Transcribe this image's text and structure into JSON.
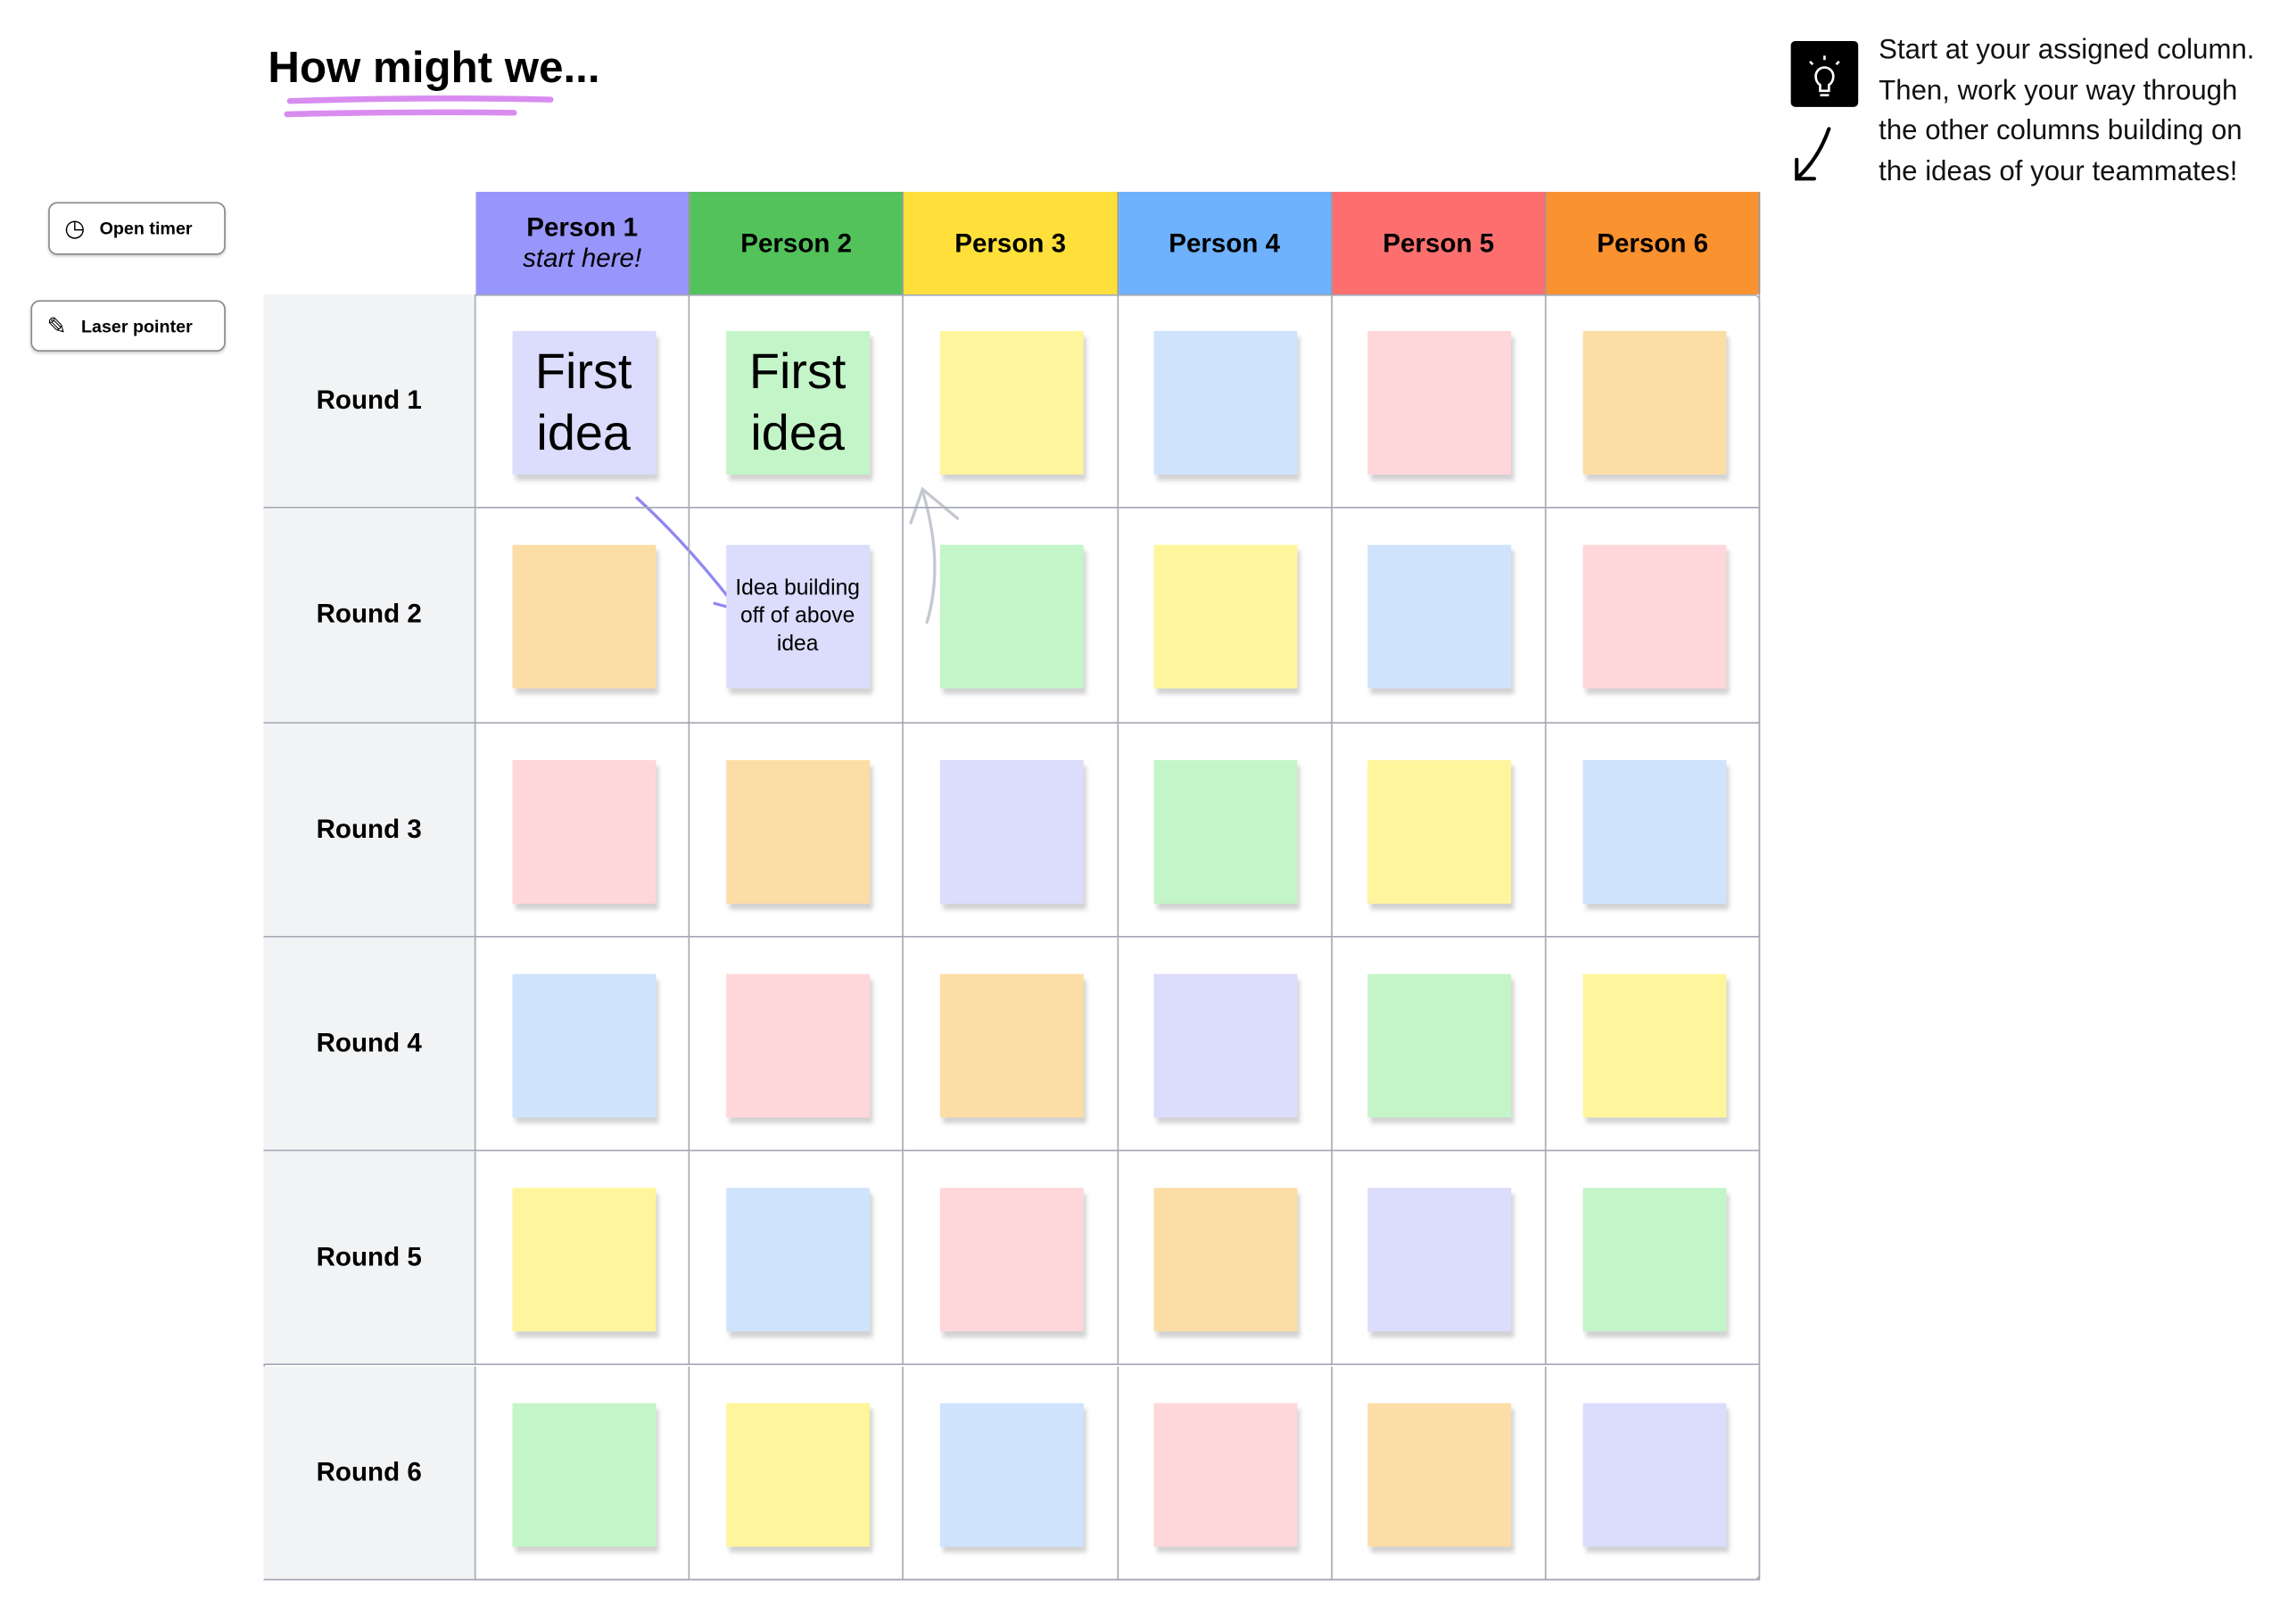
{
  "title": "How might we...",
  "toolbar": {
    "buttons": [
      "Open timer",
      "Laser pointer"
    ]
  },
  "instructions": [
    "Start at your assigned column.",
    "Then, work your way through",
    "the other columns building on",
    "the ideas of your teammates!"
  ],
  "board": {
    "columns": [
      {
        "name": "Person 1",
        "subtitle": "start here!"
      },
      {
        "name": "Person 2"
      },
      {
        "name": "Person 3"
      },
      {
        "name": "Person 4"
      },
      {
        "name": "Person 5"
      },
      {
        "name": "Person 6"
      }
    ],
    "rows": [
      "Round 1",
      "Round 2",
      "Round 3",
      "Round 4",
      "Round 5",
      "Round 6"
    ],
    "notes": [
      [
        "First idea",
        "First idea",
        null,
        null,
        null,
        null
      ],
      [
        null,
        "Idea building off of above idea",
        null,
        null,
        null,
        null
      ],
      [
        null,
        null,
        null,
        null,
        null,
        null
      ],
      [
        null,
        null,
        null,
        null,
        null,
        null
      ],
      [
        null,
        null,
        null,
        null,
        null,
        null
      ],
      [
        null,
        null,
        null,
        null,
        null,
        null
      ]
    ]
  }
}
